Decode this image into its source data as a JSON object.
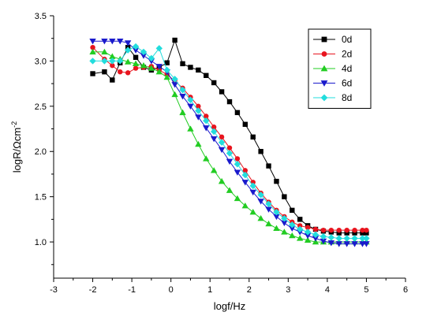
{
  "chart_data": {
    "type": "line",
    "xlabel": "logf/Hz",
    "ylabel": "logR/Ωcm",
    "ylabel_superscript": "-2",
    "xlim": [
      -3,
      6
    ],
    "ylim": [
      0.6,
      3.5
    ],
    "xticks": [
      -3,
      -2,
      -1,
      0,
      1,
      2,
      3,
      4,
      5,
      6
    ],
    "yticks": [
      1.0,
      1.5,
      2.0,
      2.5,
      3.0,
      3.5
    ],
    "ytick_labels": [
      "1.0",
      "1.5",
      "2.0",
      "2.5",
      "3.0",
      "3.5"
    ],
    "grid": false,
    "legend_position": "top-right",
    "x": [
      -2.0,
      -1.7,
      -1.5,
      -1.3,
      -1.1,
      -0.9,
      -0.7,
      -0.5,
      -0.3,
      -0.1,
      0.1,
      0.3,
      0.5,
      0.7,
      0.9,
      1.1,
      1.3,
      1.5,
      1.7,
      1.9,
      2.1,
      2.3,
      2.5,
      2.7,
      2.9,
      3.1,
      3.3,
      3.5,
      3.7,
      3.9,
      4.1,
      4.3,
      4.5,
      4.7,
      4.9,
      5.0
    ],
    "series": [
      {
        "name": "0d",
        "color": "#000000",
        "marker": "square",
        "values": [
          2.86,
          2.88,
          2.79,
          2.98,
          3.15,
          3.04,
          2.93,
          2.9,
          2.93,
          2.98,
          3.23,
          2.97,
          2.93,
          2.9,
          2.84,
          2.76,
          2.66,
          2.55,
          2.43,
          2.3,
          2.16,
          2.0,
          1.84,
          1.67,
          1.5,
          1.35,
          1.25,
          1.18,
          1.14,
          1.12,
          1.11,
          1.1,
          1.1,
          1.1,
          1.1,
          1.1
        ]
      },
      {
        "name": "2d",
        "color": "#e8141e",
        "marker": "circle",
        "values": [
          3.15,
          3.02,
          2.95,
          2.88,
          2.87,
          2.92,
          2.93,
          2.94,
          2.9,
          2.85,
          2.78,
          2.7,
          2.6,
          2.5,
          2.39,
          2.27,
          2.16,
          2.04,
          1.92,
          1.79,
          1.66,
          1.54,
          1.44,
          1.35,
          1.28,
          1.22,
          1.18,
          1.16,
          1.14,
          1.13,
          1.13,
          1.13,
          1.13,
          1.13,
          1.13,
          1.13
        ]
      },
      {
        "name": "4d",
        "color": "#22cc22",
        "marker": "triangle-up",
        "values": [
          3.1,
          3.1,
          3.05,
          3.02,
          2.99,
          2.97,
          2.95,
          2.92,
          2.88,
          2.82,
          2.63,
          2.43,
          2.25,
          2.08,
          1.92,
          1.79,
          1.67,
          1.57,
          1.48,
          1.4,
          1.33,
          1.26,
          1.2,
          1.15,
          1.11,
          1.07,
          1.04,
          1.02,
          1.0,
          1.0,
          1.0,
          1.0,
          1.0,
          1.0,
          1.0,
          1.0
        ]
      },
      {
        "name": "6d",
        "color": "#1a1acc",
        "marker": "triangle-down",
        "values": [
          3.22,
          3.22,
          3.22,
          3.22,
          3.2,
          3.12,
          3.06,
          3.0,
          2.94,
          2.88,
          2.74,
          2.61,
          2.5,
          2.38,
          2.26,
          2.14,
          2.02,
          1.89,
          1.77,
          1.66,
          1.55,
          1.45,
          1.36,
          1.28,
          1.21,
          1.15,
          1.11,
          1.07,
          1.04,
          1.01,
          0.99,
          0.98,
          0.98,
          0.98,
          0.98,
          0.98
        ]
      },
      {
        "name": "8d",
        "color": "#22dddd",
        "marker": "diamond",
        "values": [
          3.0,
          3.0,
          3.0,
          3.0,
          3.12,
          3.16,
          3.1,
          3.03,
          3.14,
          2.9,
          2.8,
          2.68,
          2.57,
          2.45,
          2.34,
          2.22,
          2.1,
          1.98,
          1.86,
          1.74,
          1.62,
          1.52,
          1.42,
          1.33,
          1.26,
          1.19,
          1.14,
          1.11,
          1.08,
          1.06,
          1.05,
          1.04,
          1.04,
          1.04,
          1.04,
          1.04
        ]
      }
    ]
  }
}
